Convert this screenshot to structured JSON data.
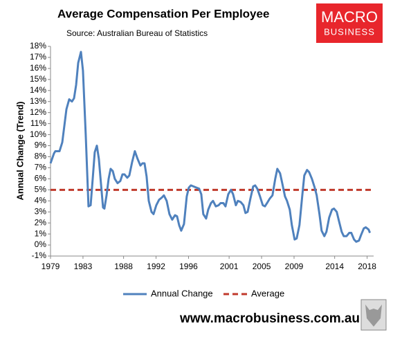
{
  "chart_data": {
    "type": "line",
    "title": "Average Compensation Per Employee",
    "subtitle": "Source: Australian Bureau of Statistics",
    "ylabel": "Annual Change (Trend)",
    "logo": [
      "MACRO",
      "BUSINESS"
    ],
    "website": "www.macrobusiness.com.au",
    "x": [
      1979,
      1979.43,
      1979.6,
      1980.11,
      1980.45,
      1980.96,
      1981.3,
      1981.64,
      1981.9,
      1982.15,
      1982.41,
      1982.75,
      1983,
      1983.34,
      1983.68,
      1983.94,
      1984.2,
      1984.45,
      1984.71,
      1984.96,
      1985.22,
      1985.47,
      1985.64,
      1985.9,
      1986.16,
      1986.41,
      1986.67,
      1986.92,
      1987.26,
      1987.6,
      1987.86,
      1988.11,
      1988.45,
      1988.71,
      1989.05,
      1989.39,
      1989.73,
      1990.07,
      1990.33,
      1990.58,
      1990.84,
      1991.1,
      1991.44,
      1991.69,
      1992.03,
      1992.37,
      1992.71,
      1992.97,
      1993.31,
      1993.65,
      1993.99,
      1994.33,
      1994.59,
      1994.84,
      1995.1,
      1995.44,
      1995.78,
      1996.04,
      1996.29,
      1996.63,
      1996.97,
      1997.31,
      1997.57,
      1997.82,
      1998.17,
      1998.42,
      1998.76,
      1999.02,
      1999.36,
      1999.7,
      1999.95,
      2000.29,
      2000.55,
      2000.89,
      2001.23,
      2001.49,
      2001.83,
      2002.08,
      2002.42,
      2002.76,
      2003.02,
      2003.28,
      2003.62,
      2003.96,
      2004.21,
      2004.47,
      2004.81,
      2005.15,
      2005.41,
      2005.75,
      2006,
      2006.34,
      2006.68,
      2006.94,
      2007.28,
      2007.54,
      2007.88,
      2008.13,
      2008.47,
      2008.73,
      2009.07,
      2009.32,
      2009.66,
      2010.01,
      2010.26,
      2010.6,
      2010.86,
      2011.2,
      2011.54,
      2011.79,
      2012.13,
      2012.39,
      2012.73,
      2012.99,
      2013.33,
      2013.67,
      2013.92,
      2014.26,
      2014.52,
      2014.86,
      2015.12,
      2015.46,
      2015.8,
      2016.05,
      2016.39,
      2016.65,
      2016.99,
      2017.25,
      2017.59,
      2017.84,
      2018.18,
      2018.35
    ],
    "series": [
      {
        "name": "Annual Change",
        "color": "#4f81bd",
        "values": [
          7.4,
          8.3,
          8.5,
          8.5,
          9.3,
          12.3,
          13.2,
          13.0,
          13.3,
          14.5,
          16.5,
          17.5,
          15.8,
          10.0,
          3.5,
          3.6,
          6.0,
          8.4,
          9.0,
          7.8,
          5.5,
          3.4,
          3.3,
          4.5,
          6.0,
          6.9,
          6.7,
          6.0,
          5.6,
          5.8,
          6.4,
          6.4,
          6.1,
          6.3,
          7.5,
          8.5,
          7.8,
          7.2,
          7.4,
          7.4,
          6.2,
          4.0,
          3.0,
          2.8,
          3.6,
          4.1,
          4.3,
          4.5,
          4.0,
          2.8,
          2.3,
          2.7,
          2.6,
          1.8,
          1.3,
          1.9,
          4.4,
          5.2,
          5.4,
          5.3,
          5.2,
          5.1,
          4.6,
          2.8,
          2.4,
          3.2,
          3.8,
          4.0,
          3.5,
          3.6,
          3.8,
          3.8,
          3.5,
          4.6,
          5.0,
          4.6,
          3.6,
          4.0,
          3.9,
          3.6,
          2.9,
          3.0,
          4.2,
          5.3,
          5.4,
          5.1,
          4.4,
          3.6,
          3.5,
          3.9,
          4.2,
          4.5,
          6.0,
          6.9,
          6.5,
          5.6,
          4.4,
          4.0,
          3.2,
          1.8,
          0.5,
          0.6,
          1.8,
          4.5,
          6.3,
          6.8,
          6.6,
          6.0,
          5.2,
          4.5,
          2.8,
          1.3,
          0.8,
          1.2,
          2.5,
          3.2,
          3.3,
          3.0,
          2.2,
          1.2,
          0.8,
          0.8,
          1.1,
          1.1,
          0.5,
          0.3,
          0.4,
          0.9,
          1.5,
          1.6,
          1.4,
          1.1
        ]
      }
    ],
    "reference_line": {
      "name": "Average",
      "value": 5,
      "color": "#c0392b",
      "dashed": true
    },
    "xlim": [
      1979,
      2018.8
    ],
    "xticks": [
      1979,
      1983,
      1988,
      1992,
      1996,
      2001,
      2005,
      2009,
      2014,
      2018
    ],
    "ylim": [
      -1,
      18
    ],
    "yticks": [
      {
        "value": -1,
        "label": "-1%"
      },
      {
        "value": 0,
        "label": "0%"
      },
      {
        "value": 1,
        "label": "1%"
      },
      {
        "value": 2,
        "label": "2%"
      },
      {
        "value": 3,
        "label": "3%"
      },
      {
        "value": 4,
        "label": "4%"
      },
      {
        "value": 5,
        "label": "5%"
      },
      {
        "value": 6,
        "label": "6%"
      },
      {
        "value": 7,
        "label": "7%"
      },
      {
        "value": 8,
        "label": "8%"
      },
      {
        "value": 9,
        "label": "9%"
      },
      {
        "value": 10,
        "label": "10%"
      },
      {
        "value": 11,
        "label": "11%"
      },
      {
        "value": 12,
        "label": "12%"
      },
      {
        "value": 13,
        "label": "13%"
      },
      {
        "value": 14,
        "label": "14%"
      },
      {
        "value": 15,
        "label": "15%"
      },
      {
        "value": 16,
        "label": "16%"
      },
      {
        "value": 17,
        "label": "17%"
      },
      {
        "value": 18,
        "label": "18%"
      }
    ],
    "grid": false,
    "legend": "bottom"
  }
}
